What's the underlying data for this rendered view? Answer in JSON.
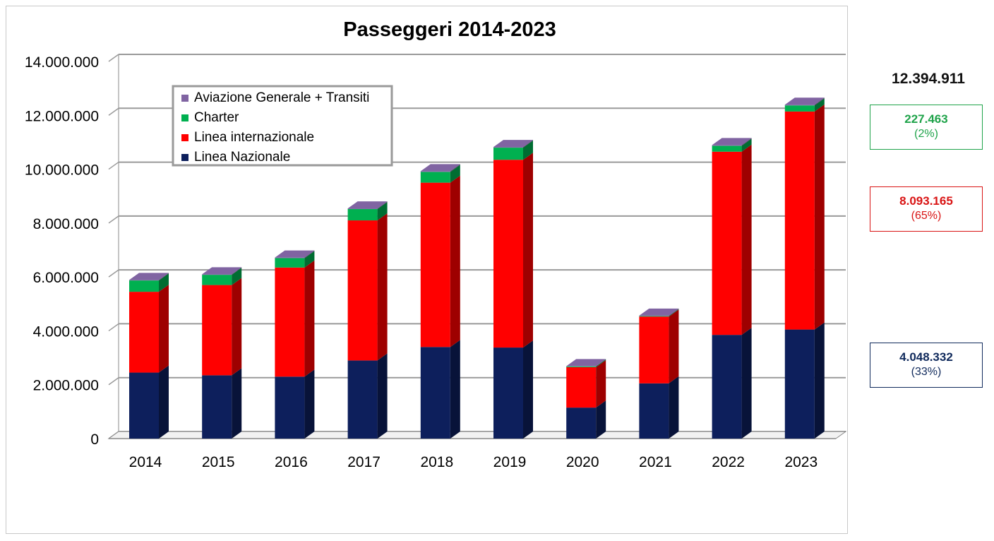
{
  "colors": {
    "nazionale": "#0d1f5c",
    "internazionale": "#ff0000",
    "charter": "#00b050",
    "aviazione": "#8064a2"
  },
  "side_panel": {
    "total": "12.394.911",
    "charter_value": "227.463",
    "charter_pct": "(2%)",
    "intl_value": "8.093.165",
    "intl_pct": "(65%)",
    "naz_value": "4.048.332",
    "naz_pct": "(33%)"
  },
  "chart_data": {
    "type": "bar",
    "stacked": true,
    "title": "Passeggeri 2014-2023",
    "categories": [
      "2014",
      "2015",
      "2016",
      "2017",
      "2018",
      "2019",
      "2020",
      "2021",
      "2022",
      "2023"
    ],
    "y_ticks": [
      "0",
      "2.000.000",
      "4.000.000",
      "6.000.000",
      "8.000.000",
      "10.000.000",
      "12.000.000",
      "14.000.000"
    ],
    "ylim": [
      0,
      14000000
    ],
    "grid": true,
    "legend_position": "top-left",
    "series": [
      {
        "name": "Linea Nazionale",
        "color_key": "nazionale",
        "values": [
          2450000,
          2350000,
          2300000,
          2900000,
          3400000,
          3380000,
          1150000,
          2050000,
          3850000,
          4048332
        ]
      },
      {
        "name": "Linea internazionale",
        "color_key": "internazionale",
        "values": [
          3000000,
          3350000,
          4050000,
          5200000,
          6100000,
          6970000,
          1500000,
          2480000,
          6800000,
          8093165
        ]
      },
      {
        "name": "Charter",
        "color_key": "charter",
        "values": [
          420000,
          380000,
          350000,
          420000,
          400000,
          450000,
          30000,
          20000,
          220000,
          227463
        ]
      },
      {
        "name": "Aviazione Generale + Transiti",
        "color_key": "aviazione",
        "values": [
          20000,
          20000,
          20000,
          25000,
          25000,
          25000,
          10000,
          15000,
          25000,
          26251
        ]
      }
    ]
  }
}
